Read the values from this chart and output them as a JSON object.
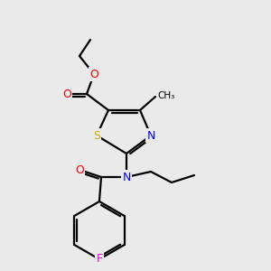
{
  "bg_color": "#eaeaea",
  "bond_color": "#000000",
  "atom_colors": {
    "O": "#ff0000",
    "N": "#0000ff",
    "S": "#ccaa00",
    "F": "#e000e0",
    "C": "#000000"
  },
  "figsize": [
    3.0,
    3.0
  ],
  "dpi": 100,
  "lw": 1.6,
  "fontsize": 9
}
